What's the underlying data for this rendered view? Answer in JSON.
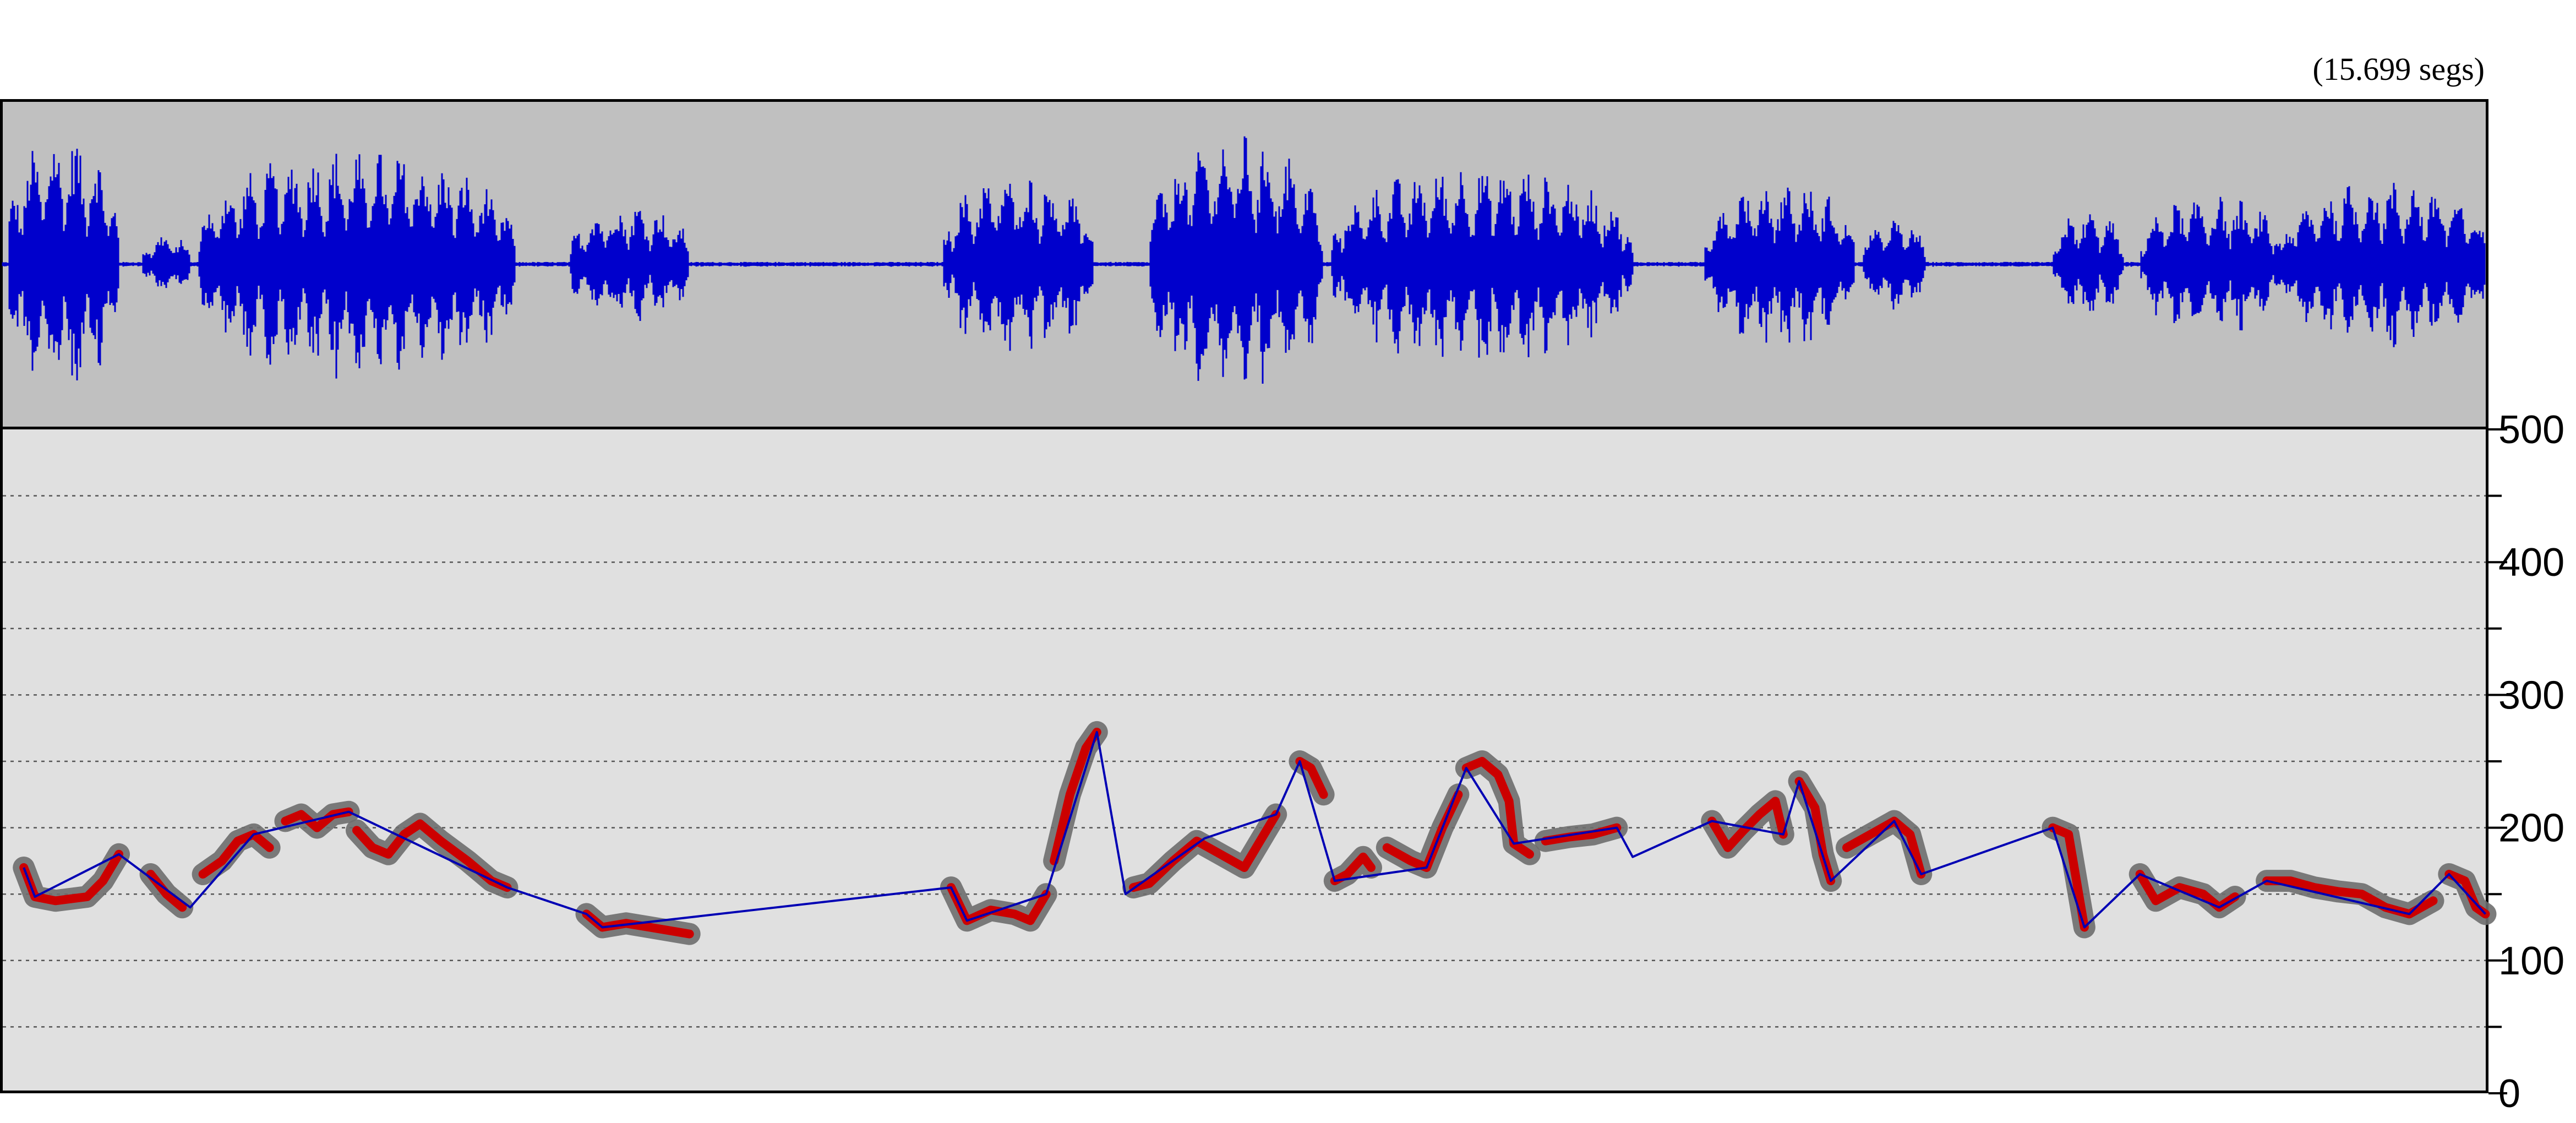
{
  "header": {
    "duration": "(15.699 segs)"
  },
  "waveform": {
    "color": "#0000cc",
    "background": "#c0c0c0"
  },
  "chart_data": {
    "type": "line",
    "title": "",
    "xlabel": "",
    "ylabel": "",
    "xlim": [
      0,
      15.699
    ],
    "ylim": [
      0,
      500
    ],
    "yticks": [
      0,
      100,
      200,
      300,
      400,
      500
    ],
    "ytick_labels": [
      "0",
      "100",
      "200",
      "300",
      "400",
      "500"
    ],
    "minor_yticks": [
      50,
      150,
      250,
      350,
      450
    ],
    "grid": true,
    "legend": "none",
    "colors": {
      "panel": "#e0e0e0",
      "halo": "#6e6e6e",
      "contour": "#cc0000",
      "line": "#0000b4"
    },
    "segments": [
      [
        [
          0.15,
          170
        ],
        [
          0.22,
          148
        ],
        [
          0.35,
          145
        ],
        [
          0.55,
          148
        ],
        [
          0.65,
          160
        ],
        [
          0.75,
          180
        ]
      ],
      [
        [
          0.95,
          165
        ],
        [
          1.05,
          150
        ],
        [
          1.15,
          140
        ]
      ],
      [
        [
          1.28,
          165
        ],
        [
          1.4,
          175
        ],
        [
          1.5,
          190
        ],
        [
          1.6,
          195
        ],
        [
          1.7,
          185
        ]
      ],
      [
        [
          1.8,
          205
        ],
        [
          1.9,
          210
        ],
        [
          2.0,
          200
        ],
        [
          2.1,
          210
        ],
        [
          2.2,
          212
        ]
      ],
      [
        [
          2.25,
          198
        ],
        [
          2.35,
          185
        ],
        [
          2.45,
          180
        ],
        [
          2.55,
          195
        ],
        [
          2.65,
          203
        ],
        [
          2.78,
          190
        ],
        [
          2.95,
          175
        ],
        [
          3.1,
          160
        ],
        [
          3.2,
          155
        ]
      ],
      [
        [
          3.7,
          135
        ],
        [
          3.8,
          125
        ],
        [
          3.95,
          128
        ],
        [
          4.1,
          125
        ],
        [
          4.35,
          120
        ]
      ],
      [
        [
          6.0,
          155
        ],
        [
          6.1,
          130
        ],
        [
          6.25,
          138
        ],
        [
          6.4,
          135
        ],
        [
          6.5,
          130
        ],
        [
          6.6,
          150
        ]
      ],
      [
        [
          6.65,
          175
        ],
        [
          6.75,
          225
        ],
        [
          6.85,
          260
        ],
        [
          6.92,
          272
        ]
      ],
      [
        [
          7.15,
          155
        ],
        [
          7.25,
          158
        ],
        [
          7.4,
          175
        ],
        [
          7.55,
          190
        ],
        [
          7.7,
          180
        ],
        [
          7.85,
          170
        ],
        [
          7.95,
          190
        ],
        [
          8.05,
          210
        ]
      ],
      [
        [
          8.2,
          250
        ],
        [
          8.27,
          245
        ],
        [
          8.35,
          225
        ]
      ],
      [
        [
          8.42,
          160
        ],
        [
          8.5,
          165
        ],
        [
          8.6,
          178
        ],
        [
          8.65,
          170
        ]
      ],
      [
        [
          8.75,
          185
        ],
        [
          8.9,
          175
        ],
        [
          9.0,
          170
        ],
        [
          9.1,
          200
        ],
        [
          9.2,
          225
        ]
      ],
      [
        [
          9.25,
          245
        ],
        [
          9.35,
          250
        ],
        [
          9.45,
          240
        ],
        [
          9.52,
          220
        ],
        [
          9.55,
          188
        ],
        [
          9.65,
          180
        ]
      ],
      [
        [
          9.75,
          190
        ],
        [
          9.9,
          193
        ],
        [
          10.05,
          195
        ],
        [
          10.2,
          200
        ]
      ],
      [
        [
          10.8,
          205
        ],
        [
          10.9,
          185
        ],
        [
          11.0,
          198
        ],
        [
          11.1,
          210
        ],
        [
          11.2,
          220
        ],
        [
          11.25,
          195
        ]
      ],
      [
        [
          11.35,
          235
        ],
        [
          11.45,
          215
        ],
        [
          11.5,
          180
        ],
        [
          11.55,
          160
        ]
      ],
      [
        [
          11.65,
          185
        ],
        [
          11.8,
          195
        ],
        [
          11.95,
          205
        ],
        [
          12.05,
          195
        ],
        [
          12.12,
          165
        ]
      ],
      [
        [
          12.95,
          200
        ],
        [
          13.05,
          195
        ],
        [
          13.1,
          160
        ],
        [
          13.15,
          125
        ]
      ],
      [
        [
          13.5,
          165
        ],
        [
          13.6,
          145
        ],
        [
          13.75,
          155
        ],
        [
          13.9,
          150
        ],
        [
          14.0,
          140
        ],
        [
          14.1,
          148
        ]
      ],
      [
        [
          14.3,
          160
        ],
        [
          14.45,
          160
        ],
        [
          14.6,
          155
        ],
        [
          14.75,
          152
        ],
        [
          14.9,
          150
        ],
        [
          15.05,
          140
        ],
        [
          15.2,
          135
        ],
        [
          15.35,
          145
        ]
      ],
      [
        [
          15.45,
          165
        ],
        [
          15.55,
          160
        ],
        [
          15.62,
          140
        ],
        [
          15.68,
          135
        ]
      ]
    ],
    "interpolation": [
      [
        0.15,
        170
      ],
      [
        0.22,
        148
      ],
      [
        0.75,
        180
      ],
      [
        1.2,
        140
      ],
      [
        1.6,
        195
      ],
      [
        2.2,
        212
      ],
      [
        3.2,
        155
      ],
      [
        3.7,
        135
      ],
      [
        3.8,
        125
      ],
      [
        6.0,
        155
      ],
      [
        6.1,
        130
      ],
      [
        6.6,
        150
      ],
      [
        6.92,
        272
      ],
      [
        7.1,
        150
      ],
      [
        7.6,
        192
      ],
      [
        8.05,
        210
      ],
      [
        8.2,
        250
      ],
      [
        8.42,
        160
      ],
      [
        9.0,
        170
      ],
      [
        9.25,
        245
      ],
      [
        9.55,
        188
      ],
      [
        10.2,
        200
      ],
      [
        10.3,
        178
      ],
      [
        10.8,
        205
      ],
      [
        11.25,
        195
      ],
      [
        11.35,
        235
      ],
      [
        11.55,
        160
      ],
      [
        11.95,
        205
      ],
      [
        12.12,
        165
      ],
      [
        12.95,
        200
      ],
      [
        13.15,
        125
      ],
      [
        13.5,
        165
      ],
      [
        14.0,
        140
      ],
      [
        14.3,
        160
      ],
      [
        15.2,
        135
      ],
      [
        15.45,
        165
      ],
      [
        15.68,
        135
      ]
    ]
  }
}
